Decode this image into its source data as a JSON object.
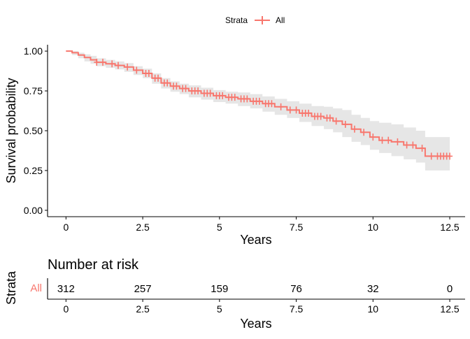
{
  "colors": {
    "series": "#F8766D",
    "band": "#E6E6E6",
    "axis": "#000000"
  },
  "legend": {
    "title": "Strata",
    "label": "All",
    "position": "top-center"
  },
  "chart_data": [
    {
      "type": "line",
      "subtype": "kaplan-meier",
      "xlabel": "Years",
      "ylabel": "Survival probability",
      "xlim": [
        -0.6,
        13.0
      ],
      "ylim": [
        -0.04,
        1.04
      ],
      "xticks": [
        "0",
        "2.5",
        "5",
        "7.5",
        "10",
        "12.5"
      ],
      "yticks": [
        "0.00",
        "0.25",
        "0.50",
        "0.75",
        "1.00"
      ],
      "grid": false,
      "series": [
        {
          "name": "All",
          "x": [
            0,
            0.2,
            0.4,
            0.6,
            0.8,
            1.0,
            1.3,
            1.6,
            1.9,
            2.2,
            2.5,
            2.8,
            3.1,
            3.4,
            3.7,
            4.0,
            4.4,
            4.8,
            5.2,
            5.6,
            6.0,
            6.4,
            6.8,
            7.2,
            7.6,
            8.0,
            8.4,
            8.7,
            9.0,
            9.3,
            9.6,
            9.9,
            10.2,
            10.6,
            11.0,
            11.4,
            11.7,
            12.0,
            12.5
          ],
          "y": [
            1.0,
            0.99,
            0.975,
            0.96,
            0.945,
            0.93,
            0.92,
            0.91,
            0.9,
            0.88,
            0.86,
            0.83,
            0.8,
            0.78,
            0.765,
            0.75,
            0.735,
            0.72,
            0.71,
            0.7,
            0.685,
            0.67,
            0.65,
            0.63,
            0.61,
            0.59,
            0.58,
            0.56,
            0.54,
            0.51,
            0.49,
            0.46,
            0.44,
            0.43,
            0.41,
            0.39,
            0.34,
            0.34,
            0.34
          ],
          "ci_upper": [
            1.0,
            1.0,
            0.99,
            0.98,
            0.97,
            0.955,
            0.945,
            0.935,
            0.925,
            0.905,
            0.89,
            0.86,
            0.83,
            0.81,
            0.795,
            0.785,
            0.77,
            0.755,
            0.745,
            0.74,
            0.73,
            0.715,
            0.7,
            0.685,
            0.67,
            0.655,
            0.65,
            0.64,
            0.63,
            0.6,
            0.58,
            0.56,
            0.55,
            0.54,
            0.52,
            0.5,
            0.46,
            0.46,
            0.46
          ],
          "ci_lower": [
            1.0,
            0.975,
            0.955,
            0.935,
            0.92,
            0.905,
            0.895,
            0.885,
            0.87,
            0.85,
            0.83,
            0.795,
            0.765,
            0.745,
            0.73,
            0.71,
            0.695,
            0.68,
            0.67,
            0.655,
            0.64,
            0.62,
            0.6,
            0.58,
            0.555,
            0.53,
            0.51,
            0.49,
            0.46,
            0.43,
            0.41,
            0.38,
            0.36,
            0.34,
            0.32,
            0.3,
            0.25,
            0.25,
            0.25
          ],
          "censor_x": [
            1.0,
            1.2,
            1.5,
            1.7,
            2.0,
            2.3,
            2.6,
            2.7,
            2.9,
            3.0,
            3.2,
            3.3,
            3.5,
            3.6,
            3.8,
            3.9,
            4.1,
            4.2,
            4.3,
            4.5,
            4.6,
            4.7,
            4.9,
            5.0,
            5.1,
            5.3,
            5.4,
            5.5,
            5.7,
            5.8,
            5.9,
            6.1,
            6.2,
            6.3,
            6.5,
            6.6,
            6.7,
            7.0,
            7.3,
            7.5,
            7.7,
            7.8,
            7.9,
            8.1,
            8.2,
            8.3,
            8.5,
            8.6,
            8.8,
            9.1,
            9.4,
            9.7,
            10.0,
            10.3,
            10.5,
            10.8,
            11.1,
            11.3,
            11.6,
            11.9,
            12.1,
            12.2,
            12.3,
            12.4,
            12.5
          ]
        }
      ]
    },
    {
      "type": "table",
      "title": "Number at risk",
      "xlabel": "Years",
      "ylabel": "Strata",
      "xlim": [
        -0.6,
        13.0
      ],
      "xticks": [
        "0",
        "2.5",
        "5",
        "7.5",
        "10",
        "12.5"
      ],
      "row_label": "All",
      "x": [
        0,
        2.5,
        5,
        7.5,
        10,
        12.5
      ],
      "values": [
        "312",
        "257",
        "159",
        "76",
        "32",
        "0"
      ]
    }
  ]
}
